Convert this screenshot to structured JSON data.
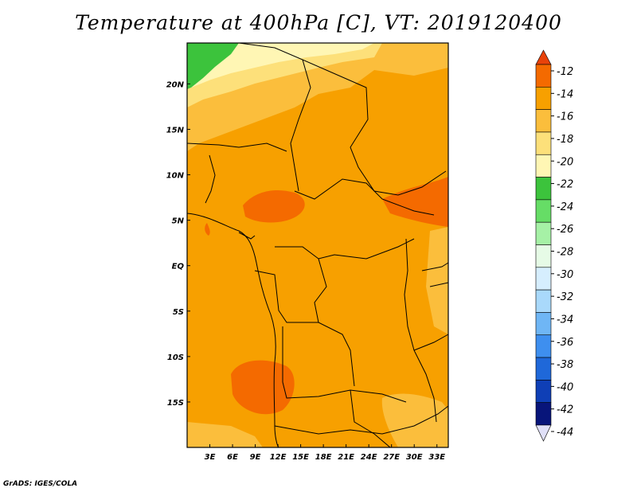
{
  "title": "Temperature at 400hPa [C], VT: 2019120400",
  "credit": "GrADS: IGES/COLA",
  "map": {
    "lon_range": [
      0,
      34.5
    ],
    "lat_range": [
      -20,
      24.5
    ],
    "lon_ticks": [
      "3E",
      "6E",
      "9E",
      "12E",
      "15E",
      "18E",
      "21E",
      "24E",
      "27E",
      "30E",
      "33E"
    ],
    "lon_tick_values": [
      3,
      6,
      9,
      12,
      15,
      18,
      21,
      24,
      27,
      30,
      33
    ],
    "lat_ticks": [
      "20N",
      "15N",
      "10N",
      "5N",
      "EQ",
      "5S",
      "10S",
      "15S"
    ],
    "lat_tick_values": [
      20,
      15,
      10,
      5,
      0,
      -5,
      -10,
      -15
    ]
  },
  "colorbar": {
    "labels": [
      "-12",
      "-14",
      "-16",
      "-18",
      "-20",
      "-22",
      "-24",
      "-26",
      "-28",
      "-30",
      "-32",
      "-34",
      "-36",
      "-38",
      "-40",
      "-42",
      "-44"
    ],
    "colors": [
      "#e8420a",
      "#f46a00",
      "#f7a000",
      "#fbbe3c",
      "#fde07a",
      "#fff6b4",
      "#3cc33c",
      "#66dd66",
      "#a6f1a6",
      "#e6fbe6",
      "#d6eefe",
      "#a9d9fb",
      "#6fb6f5",
      "#3e8fef",
      "#1f68d9",
      "#0f3fb6",
      "#08157a",
      "#0a0a6a"
    ],
    "top_color": "#e8420a",
    "bottom_color": "#e0e0f8"
  }
}
